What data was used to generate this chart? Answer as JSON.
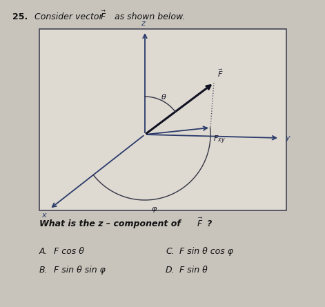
{
  "title_number": "25.",
  "title_text": "Consider vector ",
  "title_suffix": " as shown below.",
  "question": "What is the z – component of ",
  "answer_A_label": "A.",
  "answer_A_text": "F cos θ",
  "answer_B_label": "B.",
  "answer_B_text": "F sin θ sin φ",
  "answer_C_label": "C.",
  "answer_C_text": "F sin θ cos φ",
  "answer_D_label": "D.",
  "answer_D_text": "F sin θ",
  "bg_color": "#c8c4bc",
  "box_bg": "#dedad2",
  "box_border": "#444455",
  "axis_color": "#2a3a6a",
  "vector_color": "#111122",
  "dotted_color": "#555566",
  "label_color": "#111122",
  "text_color": "#111111"
}
